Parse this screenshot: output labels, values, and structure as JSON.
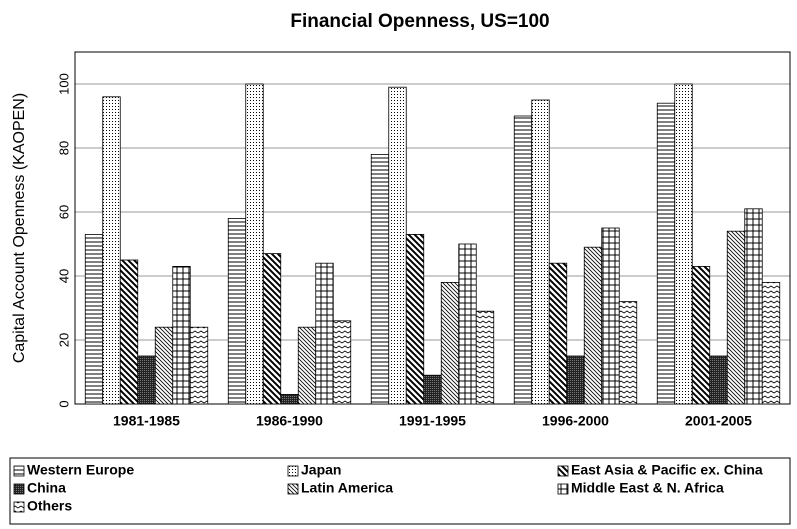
{
  "chart_data": {
    "type": "bar",
    "title": "Financial Openness, US=100",
    "y_label": "Capital Account Openness (KAOPEN)",
    "categories": [
      "1981-1985",
      "1986-1990",
      "1991-1995",
      "1996-2000",
      "2001-2005"
    ],
    "series": [
      {
        "name": "Western Europe",
        "values": [
          53,
          58,
          78,
          90,
          94
        ]
      },
      {
        "name": "Japan",
        "values": [
          96,
          100,
          99,
          95,
          100
        ]
      },
      {
        "name": "East Asia & Pacific ex. China",
        "values": [
          45,
          47,
          53,
          44,
          43
        ]
      },
      {
        "name": "China",
        "values": [
          15,
          3,
          9,
          15,
          15
        ]
      },
      {
        "name": "Latin America",
        "values": [
          24,
          24,
          38,
          49,
          54
        ]
      },
      {
        "name": "Middle East & N. Africa",
        "values": [
          43,
          44,
          50,
          55,
          61
        ]
      },
      {
        "name": "Others",
        "values": [
          24,
          26,
          29,
          32,
          38
        ]
      }
    ],
    "ylim": [
      0,
      110
    ],
    "yticks": [
      0,
      20,
      40,
      60,
      80,
      100
    ],
    "grid": true
  }
}
